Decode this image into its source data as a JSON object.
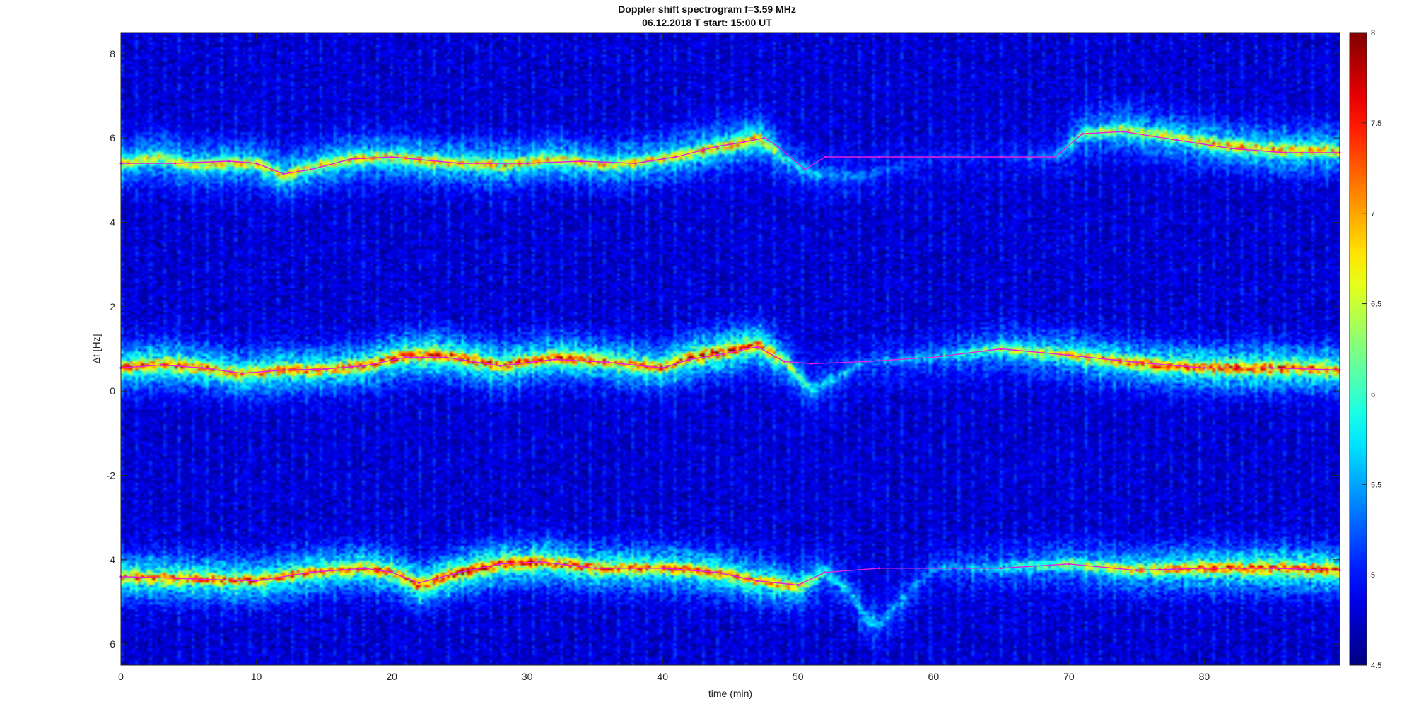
{
  "chart_data": {
    "type": "heatmap",
    "title": "Doppler shift spectrogram f=3.59 MHz",
    "subtitle": "06.12.2018    T start: 15:00 UT",
    "xlabel": "time (min)",
    "ylabel": "Δf [Hz]",
    "xlim": [
      0,
      90
    ],
    "ylim": [
      -6.5,
      8.5
    ],
    "xticks": [
      0,
      10,
      20,
      30,
      40,
      50,
      60,
      70,
      80
    ],
    "yticks": [
      -6,
      -4,
      -2,
      0,
      2,
      4,
      6,
      8
    ],
    "colorbar": {
      "colormap": "jet",
      "range": [
        4.5,
        8
      ],
      "ticks": [
        "4.5",
        "5",
        "5.5",
        "6",
        "6.5",
        "7",
        "7.5",
        "8"
      ]
    },
    "grid": false,
    "background_level": 4.6,
    "bands": [
      {
        "name": "upper",
        "x": [
          0,
          3,
          5,
          8,
          10,
          12,
          14,
          17,
          20,
          24,
          28,
          32,
          36,
          40,
          43,
          46,
          47,
          48,
          49,
          51,
          55,
          60,
          65,
          69,
          71,
          74,
          78,
          82,
          86,
          90
        ],
        "y": [
          5.4,
          5.55,
          5.35,
          5.4,
          5.4,
          5.1,
          5.3,
          5.5,
          5.55,
          5.4,
          5.35,
          5.5,
          5.35,
          5.5,
          5.7,
          5.9,
          6.0,
          5.8,
          5.5,
          5.15,
          5.1,
          5.55,
          5.55,
          5.55,
          6.1,
          6.2,
          6.0,
          5.8,
          5.7,
          5.7
        ],
        "peak": [
          6.8,
          6.7,
          6.8,
          6.9,
          7.0,
          6.9,
          6.9,
          7.0,
          7.0,
          7.0,
          7.0,
          7.0,
          6.9,
          7.0,
          7.0,
          7.2,
          7.2,
          6.7,
          6.0,
          5.6,
          5.2,
          4.9,
          4.9,
          5.3,
          6.3,
          6.7,
          6.9,
          7.1,
          7.2,
          7.1
        ]
      },
      {
        "name": "middle",
        "x": [
          0,
          3,
          6,
          9,
          12,
          15,
          18,
          21,
          24,
          28,
          32,
          36,
          40,
          42,
          44,
          47,
          49,
          51,
          55,
          60,
          65,
          70,
          75,
          80,
          85,
          90
        ],
        "y": [
          0.55,
          0.65,
          0.55,
          0.4,
          0.5,
          0.5,
          0.6,
          0.85,
          0.85,
          0.6,
          0.8,
          0.7,
          0.55,
          0.8,
          0.9,
          1.1,
          0.7,
          0.0,
          0.7,
          0.8,
          1.0,
          0.85,
          0.65,
          0.55,
          0.55,
          0.5
        ],
        "peak": [
          7.6,
          7.6,
          7.5,
          7.4,
          7.4,
          7.4,
          7.5,
          7.7,
          7.8,
          7.6,
          7.6,
          7.5,
          7.4,
          7.8,
          7.8,
          7.7,
          6.8,
          5.8,
          5.3,
          5.6,
          6.4,
          7.0,
          7.4,
          7.6,
          7.7,
          7.6
        ]
      },
      {
        "name": "lower",
        "x": [
          0,
          5,
          10,
          14,
          18,
          20,
          22,
          25,
          28,
          31,
          35,
          40,
          44,
          47,
          50,
          52,
          54,
          55,
          56,
          60,
          65,
          70,
          75,
          80,
          85,
          90
        ],
        "y": [
          -4.4,
          -4.45,
          -4.5,
          -4.3,
          -4.2,
          -4.3,
          -4.6,
          -4.3,
          -4.1,
          -4.05,
          -4.2,
          -4.2,
          -4.3,
          -4.5,
          -4.65,
          -4.3,
          -4.8,
          -5.4,
          -5.55,
          -4.2,
          -4.2,
          -4.1,
          -4.25,
          -4.2,
          -4.2,
          -4.25
        ],
        "peak": [
          7.6,
          7.5,
          7.5,
          7.4,
          7.4,
          7.5,
          7.7,
          7.8,
          7.9,
          7.7,
          7.5,
          7.5,
          7.4,
          7.4,
          7.0,
          6.0,
          5.6,
          5.8,
          5.6,
          5.3,
          5.8,
          6.4,
          7.0,
          7.5,
          7.7,
          7.7
        ]
      }
    ],
    "traces": [
      {
        "name": "upper-trace",
        "color": "#e020e0",
        "x": [
          0,
          4,
          8,
          10,
          12,
          14,
          17,
          20,
          25,
          30,
          34,
          38,
          41,
          44,
          46,
          47.5,
          48.5,
          50.5,
          52,
          56,
          60,
          65,
          69,
          71,
          74,
          78,
          82,
          86,
          90
        ],
        "y": [
          5.4,
          5.4,
          5.45,
          5.4,
          5.15,
          5.25,
          5.5,
          5.55,
          5.4,
          5.4,
          5.45,
          5.4,
          5.55,
          5.8,
          5.9,
          6.0,
          5.8,
          5.25,
          5.55,
          5.55,
          5.55,
          5.55,
          5.55,
          6.1,
          6.15,
          5.95,
          5.75,
          5.65,
          5.65
        ]
      },
      {
        "name": "middle-trace",
        "color": "#e020e0",
        "x": [
          0,
          3,
          6,
          9,
          12,
          15,
          18,
          21,
          24,
          28,
          32,
          36,
          40,
          42,
          44,
          47,
          49,
          51,
          55,
          60,
          65,
          70,
          75,
          80,
          85,
          90
        ],
        "y": [
          0.55,
          0.62,
          0.55,
          0.42,
          0.5,
          0.52,
          0.6,
          0.8,
          0.8,
          0.6,
          0.75,
          0.68,
          0.55,
          0.75,
          0.85,
          1.05,
          0.7,
          0.65,
          0.7,
          0.8,
          1.0,
          0.85,
          0.68,
          0.55,
          0.55,
          0.5
        ]
      },
      {
        "name": "lower-trace",
        "color": "#e020e0",
        "x": [
          0,
          5,
          10,
          14,
          18,
          20,
          22,
          25,
          28,
          31,
          35,
          40,
          44,
          47,
          50,
          52,
          56,
          60,
          65,
          70,
          75,
          80,
          85,
          90
        ],
        "y": [
          -4.4,
          -4.45,
          -4.5,
          -4.3,
          -4.2,
          -4.3,
          -4.55,
          -4.3,
          -4.1,
          -4.05,
          -4.2,
          -4.2,
          -4.3,
          -4.5,
          -4.6,
          -4.3,
          -4.2,
          -4.2,
          -4.2,
          -4.1,
          -4.25,
          -4.2,
          -4.2,
          -4.25
        ]
      }
    ]
  }
}
